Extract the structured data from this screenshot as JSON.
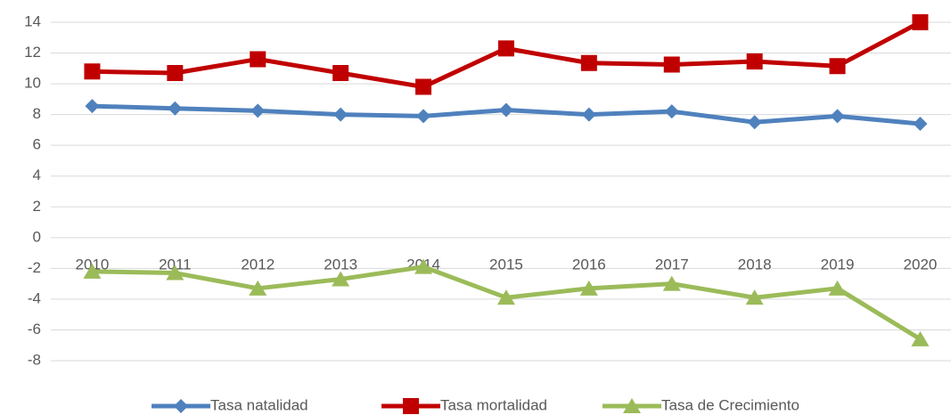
{
  "chart_data": {
    "type": "line",
    "categories": [
      "2010",
      "2011",
      "2012",
      "2013",
      "2014",
      "2015",
      "2016",
      "2017",
      "2018",
      "2019",
      "2020"
    ],
    "series": [
      {
        "name": "Tasa natalidad",
        "color": "#4f81bd",
        "marker": "diamond",
        "values": [
          8.55,
          8.4,
          8.25,
          8.0,
          7.9,
          8.3,
          8.0,
          8.2,
          7.5,
          7.9,
          7.4
        ]
      },
      {
        "name": "Tasa mortalidad",
        "color": "#c00000",
        "marker": "square",
        "values": [
          10.8,
          10.7,
          11.6,
          10.7,
          9.8,
          12.3,
          11.35,
          11.25,
          11.45,
          11.15,
          14.0
        ]
      },
      {
        "name": "Tasa de Crecimiento",
        "color": "#9bbb59",
        "marker": "triangle",
        "values": [
          -2.2,
          -2.3,
          -3.3,
          -2.7,
          -1.9,
          -3.9,
          -3.3,
          -3.0,
          -3.9,
          -3.3,
          -6.6
        ]
      }
    ],
    "ylim": [
      -8,
      14
    ],
    "yticks": [
      -8,
      -6,
      -4,
      -2,
      0,
      2,
      4,
      6,
      8,
      10,
      12,
      14
    ],
    "grid": true,
    "legend": "bottom"
  }
}
